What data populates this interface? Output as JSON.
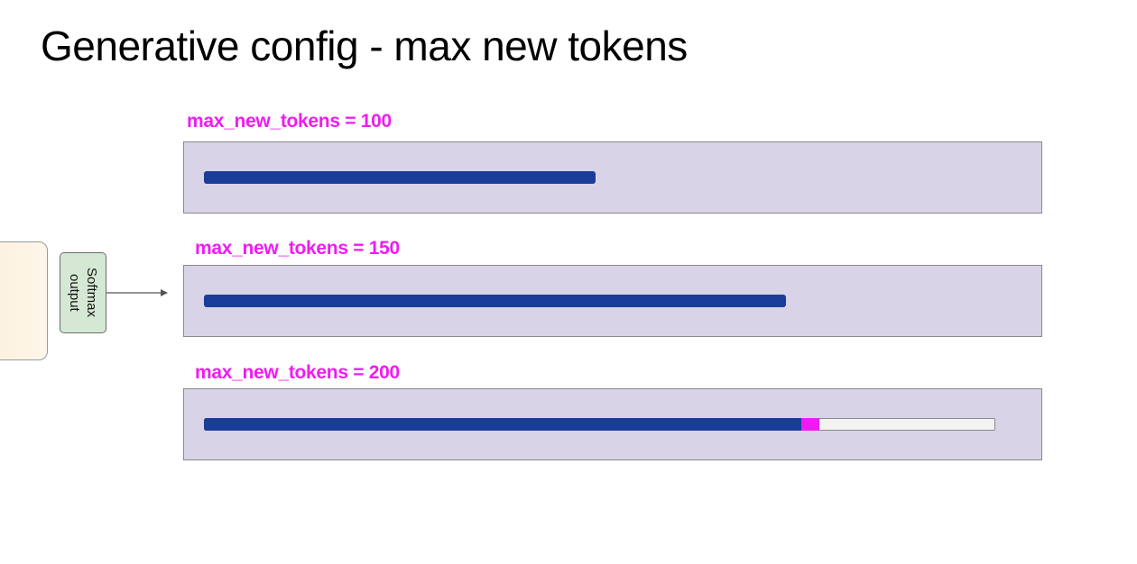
{
  "title": "Generative config - max new tokens",
  "model": {
    "softmax_label": "Softmax\noutput"
  },
  "rows": [
    {
      "label": "max_new_tokens = 100",
      "fill": 0.495,
      "has_track": false,
      "overflow": 0
    },
    {
      "label": "max_new_tokens = 150",
      "fill": 0.736,
      "has_track": false,
      "overflow": 0
    },
    {
      "label": "max_new_tokens = 200",
      "fill": 0.755,
      "has_track": true,
      "overflow": 0.023
    }
  ],
  "colors": {
    "label": "#ef1cf2",
    "bar": "#1b3d9a",
    "panel": "#d9d3e8",
    "overflow": "#ef1cf2",
    "softmax_box": "#d5e8d4",
    "model_block": "#fdf1dd"
  }
}
